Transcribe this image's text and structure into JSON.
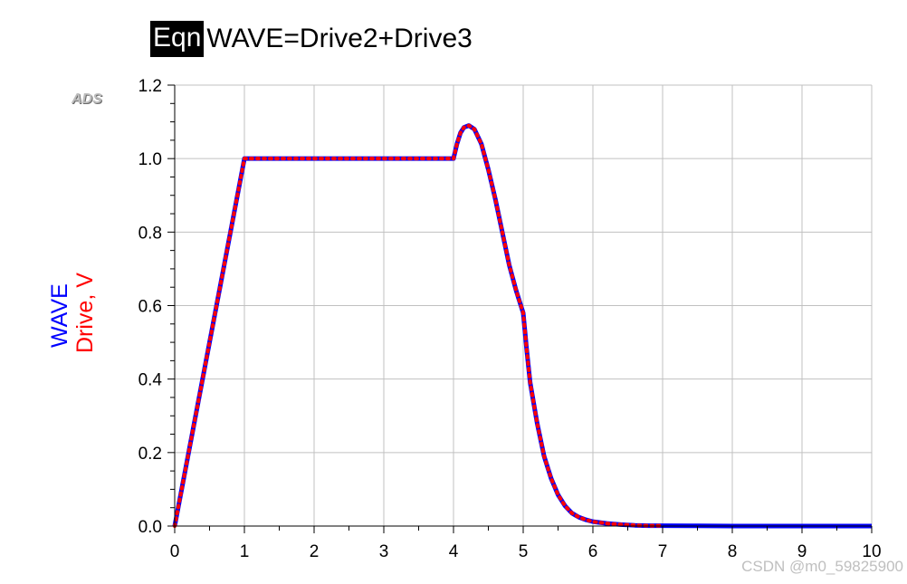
{
  "header": {
    "badge": "Eqn",
    "equation": "WAVE=Drive2+Drive3"
  },
  "logo": "ADS",
  "watermark": "CSDN @m0_59825900",
  "chart_data": {
    "type": "line",
    "xlim": [
      0,
      10
    ],
    "ylim": [
      0,
      1.2
    ],
    "xticks": [
      0,
      1,
      2,
      3,
      4,
      5,
      6,
      7,
      8,
      9,
      10
    ],
    "yticks": [
      0.0,
      0.2,
      0.4,
      0.6,
      0.8,
      1.0,
      1.2
    ],
    "ytick_labels": [
      "0.0",
      "0.2",
      "0.4",
      "0.6",
      "0.8",
      "1.0",
      "1.2"
    ],
    "grid": true,
    "ylabel_lines": [
      {
        "text": "WAVE",
        "color": "#0000ff"
      },
      {
        "text": "Drive, V",
        "color": "#ff0000"
      }
    ],
    "series": [
      {
        "name": "WAVE",
        "color": "#0000ff",
        "style": "solid",
        "x": [
          0,
          0.5,
          1.0,
          2.0,
          3.0,
          4.0,
          4.05,
          4.1,
          4.15,
          4.22,
          4.3,
          4.4,
          4.5,
          4.6,
          4.7,
          4.8,
          4.9,
          5.0,
          5.05,
          5.1,
          5.2,
          5.3,
          5.4,
          5.5,
          5.6,
          5.7,
          5.8,
          5.9,
          6.0,
          6.2,
          6.4,
          6.6,
          6.8,
          7.0,
          7.5,
          8.0,
          9.0,
          10.0
        ],
        "y": [
          0,
          0.5,
          1.0,
          1.0,
          1.0,
          1.0,
          1.04,
          1.07,
          1.085,
          1.09,
          1.08,
          1.04,
          0.97,
          0.89,
          0.8,
          0.71,
          0.64,
          0.58,
          0.48,
          0.39,
          0.28,
          0.19,
          0.13,
          0.085,
          0.055,
          0.035,
          0.024,
          0.017,
          0.012,
          0.007,
          0.004,
          0.002,
          0.001,
          0.001,
          0.0005,
          0.0,
          0.0,
          0.0
        ]
      },
      {
        "name": "Drive",
        "color": "#ff0000",
        "style": "dotted",
        "x": [
          0,
          0.5,
          1.0,
          2.0,
          3.0,
          4.0,
          4.05,
          4.1,
          4.15,
          4.22,
          4.3,
          4.4,
          4.5,
          4.6,
          4.7,
          4.8,
          4.9,
          5.0,
          5.05,
          5.1,
          5.2,
          5.3,
          5.4,
          5.5,
          5.6,
          5.7,
          5.8,
          5.9,
          6.0,
          6.2,
          6.4,
          6.6,
          6.8,
          7.0
        ],
        "y": [
          0,
          0.5,
          1.0,
          1.0,
          1.0,
          1.0,
          1.04,
          1.07,
          1.085,
          1.09,
          1.08,
          1.04,
          0.97,
          0.89,
          0.8,
          0.71,
          0.64,
          0.58,
          0.48,
          0.39,
          0.28,
          0.19,
          0.13,
          0.085,
          0.055,
          0.035,
          0.024,
          0.017,
          0.012,
          0.007,
          0.004,
          0.002,
          0.001,
          0.001
        ]
      }
    ]
  }
}
